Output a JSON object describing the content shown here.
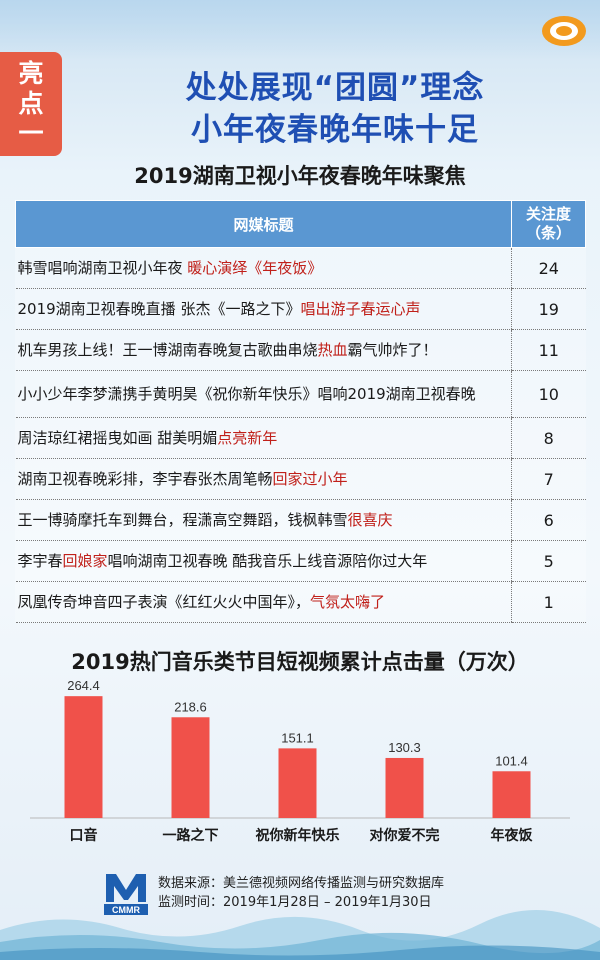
{
  "badge": {
    "chars": [
      "亮",
      "点",
      "一"
    ]
  },
  "headline": {
    "line1": "处处展现“团圆”理念",
    "line2": "小年夜春晚年味十足"
  },
  "table": {
    "title": "2019湖南卫视小年夜春晚年味聚焦",
    "headers": {
      "title_col": "网媒标题",
      "count_col_line1": "关注度",
      "count_col_line2": "（条）"
    },
    "rows": [
      {
        "pre": "韩雪唱响湖南卫视小年夜 ",
        "hl": "暖心演绎《年夜饭》",
        "post": "",
        "count": "24"
      },
      {
        "pre": "2019湖南卫视春晚直播 张杰《一路之下》",
        "hl": "唱出游子春运心声",
        "post": "",
        "count": "19"
      },
      {
        "pre": "机车男孩上线！王一博湖南春晚复古歌曲串烧",
        "hl": "热血",
        "post": "霸气帅炸了！",
        "count": "11"
      },
      {
        "pre": "小小少年李梦潇携手黄明昊《祝你新年快乐》唱响2019湖南卫视春晚",
        "hl": "",
        "post": "",
        "count": "10"
      },
      {
        "pre": "周洁琼红裙摇曳如画 甜美明媚",
        "hl": "点亮新年",
        "post": "",
        "count": "8"
      },
      {
        "pre": "湖南卫视春晚彩排，李宇春张杰周笔畅",
        "hl": "回家过小年",
        "post": "",
        "count": "7"
      },
      {
        "pre": "王一博骑摩托车到舞台，程潇高空舞蹈，钱枫韩雪",
        "hl": "很喜庆",
        "post": "",
        "count": "6"
      },
      {
        "pre": "李宇春",
        "hl": "回娘家",
        "post": "唱响湖南卫视春晚 酷我音乐上线音源陪你过大年",
        "count": "5"
      },
      {
        "pre": "凤凰传奇坤音四子表演《红红火火中国年》，",
        "hl": "气氛太嗨了",
        "post": "",
        "count": "1"
      }
    ]
  },
  "chart_data": {
    "type": "bar",
    "title": "2019热门音乐类节目短视频累计点击量（万次）",
    "categories": [
      "口音",
      "一路之下",
      "祝你新年快乐",
      "对你爱不完",
      "年夜饭"
    ],
    "values": [
      264.4,
      218.6,
      151.1,
      130.3,
      101.4
    ],
    "value_labels": [
      "264.4",
      "218.6",
      "151.1",
      "130.3",
      "101.4"
    ],
    "ylim": [
      0,
      300
    ],
    "bar_color": "#f0514a",
    "grid": false
  },
  "source": {
    "logo_text": "CMMR",
    "line1": "数据来源：美兰德视频网络传播监测与研究数据库",
    "line2": "监测时间：2019年1月28日 – 2019年1月30日"
  },
  "colors": {
    "accent_red": "#c0201a",
    "header_blue": "#5a97d2",
    "title_blue": "#1f4fb3",
    "badge_orange": "#e65c45"
  }
}
